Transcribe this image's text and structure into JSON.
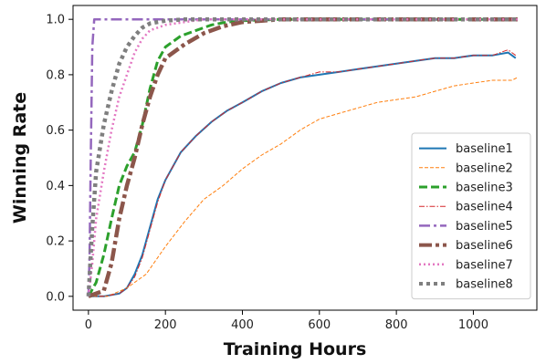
{
  "chart_data": {
    "type": "line",
    "title": "",
    "xlabel": "Training Hours",
    "ylabel": "Winning Rate",
    "xlim": [
      -40,
      1165
    ],
    "ylim": [
      -0.05,
      1.05
    ],
    "xticks": [
      0,
      200,
      400,
      600,
      800,
      1000
    ],
    "yticks": [
      0.0,
      0.2,
      0.4,
      0.6,
      0.8,
      1.0
    ],
    "grid": false,
    "legend_position": "lower-right",
    "series": [
      {
        "name": "baseline1",
        "color": "#1f77b4",
        "style": "solid",
        "x": [
          0,
          40,
          80,
          100,
          120,
          140,
          160,
          180,
          200,
          240,
          280,
          320,
          360,
          400,
          450,
          500,
          550,
          600,
          650,
          700,
          750,
          800,
          850,
          900,
          950,
          1000,
          1050,
          1090,
          1110
        ],
        "y": [
          0.0,
          0.0,
          0.01,
          0.03,
          0.08,
          0.15,
          0.25,
          0.35,
          0.42,
          0.52,
          0.58,
          0.63,
          0.67,
          0.7,
          0.74,
          0.77,
          0.79,
          0.8,
          0.81,
          0.82,
          0.83,
          0.84,
          0.85,
          0.86,
          0.86,
          0.87,
          0.87,
          0.88,
          0.86
        ]
      },
      {
        "name": "baseline2",
        "color": "#ff7f0e",
        "style": "dashed-thin",
        "x": [
          0,
          50,
          100,
          150,
          200,
          250,
          300,
          350,
          400,
          450,
          500,
          550,
          600,
          650,
          700,
          750,
          800,
          850,
          900,
          950,
          1000,
          1050,
          1100,
          1115
        ],
        "y": [
          0.0,
          0.0,
          0.03,
          0.08,
          0.18,
          0.27,
          0.35,
          0.4,
          0.46,
          0.51,
          0.55,
          0.6,
          0.64,
          0.66,
          0.68,
          0.7,
          0.71,
          0.72,
          0.74,
          0.76,
          0.77,
          0.78,
          0.78,
          0.79
        ]
      },
      {
        "name": "baseline3",
        "color": "#2ca02c",
        "style": "dashed",
        "x": [
          0,
          20,
          40,
          60,
          80,
          100,
          120,
          140,
          160,
          180,
          200,
          240,
          280,
          320,
          360,
          400,
          500,
          600,
          700,
          800,
          900,
          1000,
          1100,
          1115
        ],
        "y": [
          0.0,
          0.05,
          0.15,
          0.28,
          0.4,
          0.47,
          0.52,
          0.62,
          0.75,
          0.85,
          0.9,
          0.94,
          0.96,
          0.98,
          0.99,
          0.995,
          1.0,
          1.0,
          1.0,
          1.0,
          1.0,
          1.0,
          1.0,
          1.0
        ]
      },
      {
        "name": "baseline4",
        "color": "#d62728",
        "style": "dashdot-thin",
        "x": [
          0,
          40,
          80,
          100,
          120,
          140,
          160,
          180,
          200,
          240,
          280,
          320,
          360,
          400,
          450,
          500,
          550,
          600,
          650,
          700,
          750,
          800,
          850,
          900,
          950,
          1000,
          1050,
          1090,
          1110
        ],
        "y": [
          0.0,
          0.0,
          0.01,
          0.03,
          0.07,
          0.14,
          0.24,
          0.34,
          0.42,
          0.52,
          0.58,
          0.63,
          0.67,
          0.7,
          0.74,
          0.77,
          0.79,
          0.81,
          0.81,
          0.82,
          0.83,
          0.84,
          0.85,
          0.86,
          0.86,
          0.87,
          0.87,
          0.89,
          0.87
        ]
      },
      {
        "name": "baseline5",
        "color": "#9467bd",
        "style": "dashdot",
        "x": [
          0,
          3,
          6,
          10,
          15,
          20,
          30,
          50,
          100,
          200,
          400,
          600,
          800,
          1000,
          1115
        ],
        "y": [
          0.0,
          0.15,
          0.5,
          0.9,
          1.0,
          1.0,
          1.0,
          1.0,
          1.0,
          1.0,
          1.0,
          1.0,
          1.0,
          1.0,
          1.0
        ]
      },
      {
        "name": "baseline6",
        "color": "#8c564b",
        "style": "dashdot-thick",
        "x": [
          0,
          40,
          60,
          80,
          100,
          120,
          140,
          160,
          180,
          200,
          250,
          300,
          350,
          400,
          450,
          500,
          600,
          700,
          800,
          900,
          1000,
          1100,
          1115
        ],
        "y": [
          0.0,
          0.02,
          0.12,
          0.28,
          0.4,
          0.5,
          0.62,
          0.72,
          0.8,
          0.86,
          0.91,
          0.95,
          0.975,
          0.99,
          0.995,
          1.0,
          1.0,
          1.0,
          1.0,
          1.0,
          1.0,
          1.0,
          1.0
        ]
      },
      {
        "name": "baseline7",
        "color": "#e377c2",
        "style": "dotted",
        "x": [
          0,
          10,
          20,
          40,
          60,
          80,
          100,
          120,
          140,
          160,
          180,
          200,
          250,
          300,
          400,
          500,
          700,
          900,
          1115
        ],
        "y": [
          0.0,
          0.12,
          0.28,
          0.45,
          0.6,
          0.72,
          0.8,
          0.88,
          0.93,
          0.96,
          0.97,
          0.98,
          0.99,
          1.0,
          1.0,
          1.0,
          1.0,
          1.0,
          1.0
        ]
      },
      {
        "name": "baseline8",
        "color": "#7f7f7f",
        "style": "dotted-thick",
        "x": [
          0,
          10,
          20,
          40,
          60,
          80,
          100,
          120,
          140,
          160,
          180,
          200,
          250,
          300,
          400,
          600,
          800,
          1000,
          1115
        ],
        "y": [
          0.0,
          0.25,
          0.45,
          0.62,
          0.74,
          0.84,
          0.9,
          0.94,
          0.97,
          0.985,
          0.99,
          0.995,
          1.0,
          1.0,
          1.0,
          1.0,
          1.0,
          1.0,
          1.0
        ]
      }
    ]
  }
}
